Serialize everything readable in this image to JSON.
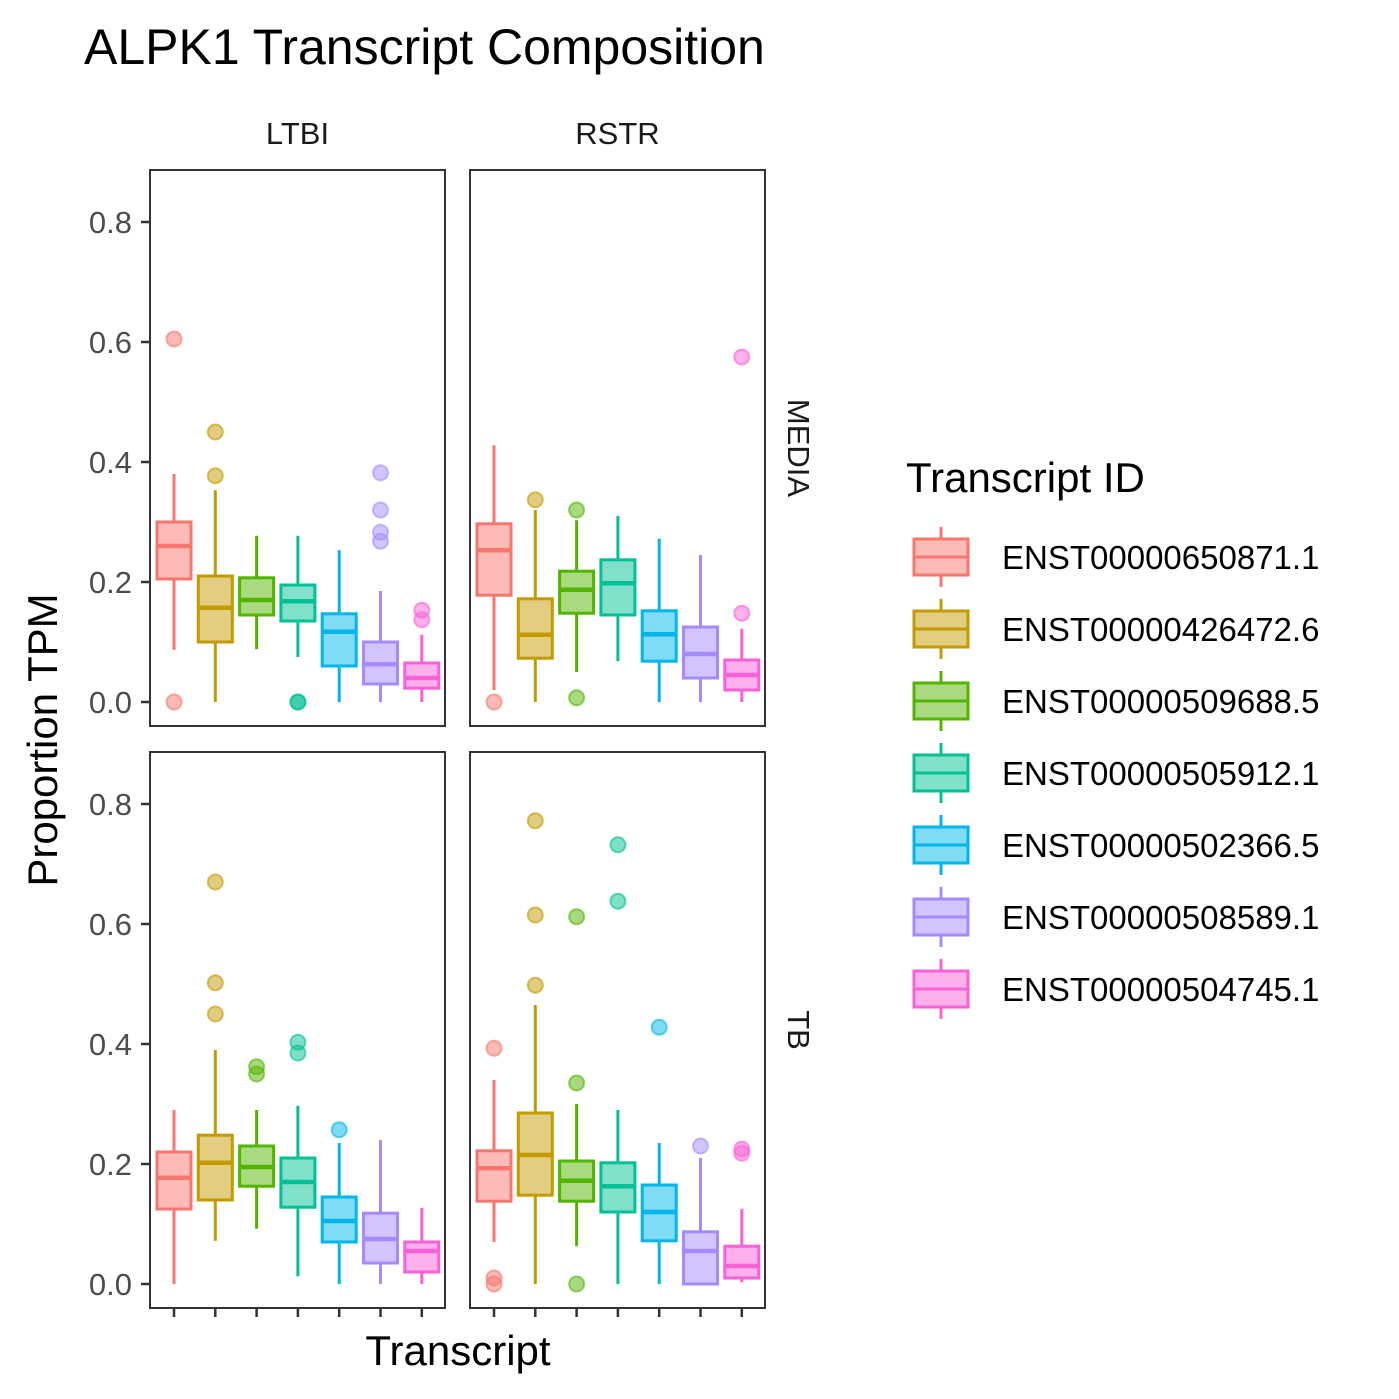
{
  "chart_data": {
    "type": "boxplot",
    "title": "ALPK1 Transcript Composition",
    "xlabel": "Transcript",
    "ylabel": "Proportion TPM",
    "ylim": [
      -0.03,
      0.885
    ],
    "y_ticks": [
      "0.0",
      "0.2",
      "0.4",
      "0.6",
      "0.8"
    ],
    "y_tick_values": [
      0,
      0.2,
      0.4,
      0.6,
      0.8
    ],
    "facet_cols": [
      "LTBI",
      "RSTR"
    ],
    "facet_rows": [
      "MEDIA",
      "TB"
    ],
    "grid": false,
    "legend": {
      "title": "Transcript ID",
      "position": "right",
      "items": [
        "ENST00000650871.1",
        "ENST00000426472.6",
        "ENST00000509688.5",
        "ENST00000505912.1",
        "ENST00000502366.5",
        "ENST00000508589.1",
        "ENST00000504745.1"
      ]
    },
    "colors": [
      "#F8766D",
      "#C49A00",
      "#53B400",
      "#00C094",
      "#00B6EB",
      "#A58AFF",
      "#FB61D7"
    ],
    "panels": [
      {
        "col": "LTBI",
        "row": "MEDIA",
        "boxes": [
          {
            "min": 0.087,
            "q1": 0.205,
            "median": 0.26,
            "q3": 0.3,
            "max": 0.38,
            "outliers": [
              0.605,
              0.0
            ]
          },
          {
            "min": 0.0,
            "q1": 0.1,
            "median": 0.157,
            "q3": 0.21,
            "max": 0.353,
            "outliers": [
              0.45,
              0.377
            ]
          },
          {
            "min": 0.088,
            "q1": 0.145,
            "median": 0.17,
            "q3": 0.207,
            "max": 0.277,
            "outliers": []
          },
          {
            "min": 0.075,
            "q1": 0.135,
            "median": 0.168,
            "q3": 0.195,
            "max": 0.277,
            "outliers": [
              0.0,
              0.0
            ]
          },
          {
            "min": 0.0,
            "q1": 0.06,
            "median": 0.117,
            "q3": 0.147,
            "max": 0.253,
            "outliers": []
          },
          {
            "min": 0.0,
            "q1": 0.03,
            "median": 0.063,
            "q3": 0.1,
            "max": 0.185,
            "outliers": [
              0.382,
              0.32,
              0.283,
              0.268
            ]
          },
          {
            "min": 0.0,
            "q1": 0.023,
            "median": 0.04,
            "q3": 0.065,
            "max": 0.112,
            "outliers": [
              0.153,
              0.137
            ]
          }
        ]
      },
      {
        "col": "RSTR",
        "row": "MEDIA",
        "boxes": [
          {
            "min": 0.02,
            "q1": 0.178,
            "median": 0.253,
            "q3": 0.297,
            "max": 0.428,
            "outliers": [
              0.0
            ]
          },
          {
            "min": 0.0,
            "q1": 0.073,
            "median": 0.112,
            "q3": 0.172,
            "max": 0.32,
            "outliers": [
              0.337
            ]
          },
          {
            "min": 0.05,
            "q1": 0.148,
            "median": 0.187,
            "q3": 0.218,
            "max": 0.303,
            "outliers": [
              0.32,
              0.007
            ]
          },
          {
            "min": 0.068,
            "q1": 0.145,
            "median": 0.198,
            "q3": 0.237,
            "max": 0.31,
            "outliers": []
          },
          {
            "min": 0.0,
            "q1": 0.068,
            "median": 0.113,
            "q3": 0.152,
            "max": 0.272,
            "outliers": []
          },
          {
            "min": 0.0,
            "q1": 0.04,
            "median": 0.08,
            "q3": 0.125,
            "max": 0.245,
            "outliers": []
          },
          {
            "min": 0.0,
            "q1": 0.02,
            "median": 0.045,
            "q3": 0.07,
            "max": 0.122,
            "outliers": [
              0.575,
              0.148
            ]
          }
        ]
      },
      {
        "col": "LTBI",
        "row": "TB",
        "boxes": [
          {
            "min": 0.0,
            "q1": 0.125,
            "median": 0.177,
            "q3": 0.22,
            "max": 0.29,
            "outliers": []
          },
          {
            "min": 0.072,
            "q1": 0.14,
            "median": 0.202,
            "q3": 0.248,
            "max": 0.39,
            "outliers": [
              0.67,
              0.502,
              0.45
            ]
          },
          {
            "min": 0.092,
            "q1": 0.163,
            "median": 0.195,
            "q3": 0.23,
            "max": 0.29,
            "outliers": [
              0.362,
              0.35
            ]
          },
          {
            "min": 0.013,
            "q1": 0.128,
            "median": 0.17,
            "q3": 0.21,
            "max": 0.297,
            "outliers": [
              0.403,
              0.385
            ]
          },
          {
            "min": 0.0,
            "q1": 0.07,
            "median": 0.105,
            "q3": 0.145,
            "max": 0.235,
            "outliers": [
              0.257
            ]
          },
          {
            "min": 0.0,
            "q1": 0.035,
            "median": 0.075,
            "q3": 0.118,
            "max": 0.24,
            "outliers": []
          },
          {
            "min": 0.0,
            "q1": 0.02,
            "median": 0.055,
            "q3": 0.07,
            "max": 0.127,
            "outliers": []
          }
        ]
      },
      {
        "col": "RSTR",
        "row": "TB",
        "boxes": [
          {
            "min": 0.07,
            "q1": 0.138,
            "median": 0.193,
            "q3": 0.222,
            "max": 0.34,
            "outliers": [
              0.393,
              0.01,
              0.0
            ]
          },
          {
            "min": 0.0,
            "q1": 0.148,
            "median": 0.215,
            "q3": 0.285,
            "max": 0.465,
            "outliers": [
              0.772,
              0.615,
              0.498
            ]
          },
          {
            "min": 0.063,
            "q1": 0.138,
            "median": 0.172,
            "q3": 0.205,
            "max": 0.3,
            "outliers": [
              0.612,
              0.335,
              0.0
            ]
          },
          {
            "min": 0.0,
            "q1": 0.12,
            "median": 0.163,
            "q3": 0.202,
            "max": 0.29,
            "outliers": [
              0.732,
              0.638
            ]
          },
          {
            "min": 0.0,
            "q1": 0.072,
            "median": 0.12,
            "q3": 0.165,
            "max": 0.235,
            "outliers": [
              0.428
            ]
          },
          {
            "min": 0.0,
            "q1": 0.0,
            "median": 0.055,
            "q3": 0.087,
            "max": 0.21,
            "outliers": [
              0.23
            ]
          },
          {
            "min": 0.003,
            "q1": 0.01,
            "median": 0.03,
            "q3": 0.063,
            "max": 0.125,
            "outliers": [
              0.225,
              0.218
            ]
          }
        ]
      }
    ]
  }
}
